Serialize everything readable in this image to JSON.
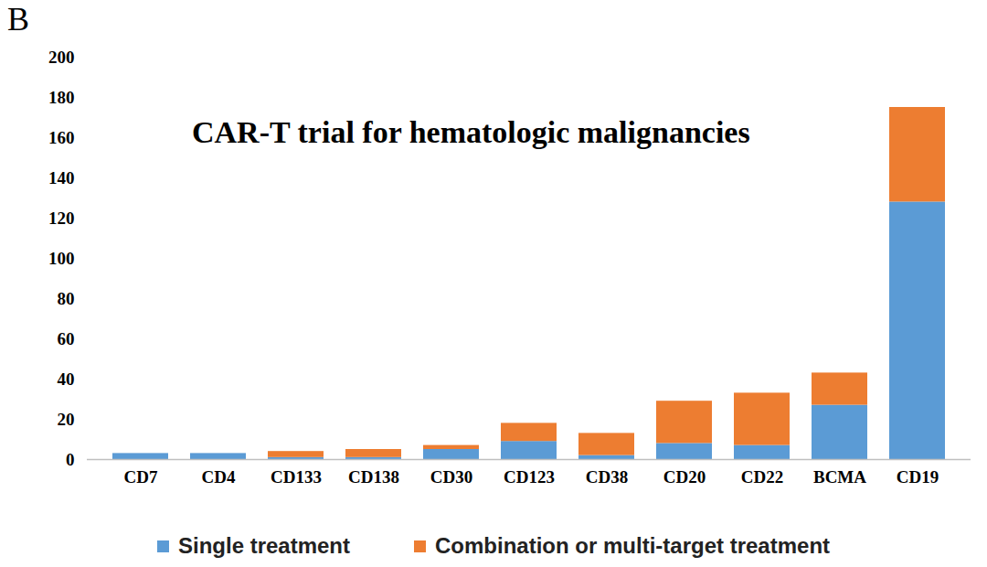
{
  "panel_label": "B",
  "chart_data": {
    "type": "bar",
    "stacked": true,
    "title": "CAR-T trial for hematologic malignancies",
    "categories": [
      "CD7",
      "CD4",
      "CD133",
      "CD138",
      "CD30",
      "CD123",
      "CD38",
      "CD20",
      "CD22",
      "BCMA",
      "CD19"
    ],
    "series": [
      {
        "name": "Single treatment",
        "color": "#5b9bd5",
        "values": [
          3,
          3,
          1,
          1,
          5,
          9,
          2,
          8,
          7,
          27,
          128
        ]
      },
      {
        "name": "Combination or multi-target treatment",
        "color": "#ed7d31",
        "values": [
          0,
          0,
          3,
          4,
          2,
          9,
          11,
          21,
          26,
          16,
          47
        ]
      }
    ],
    "ylim": [
      0,
      200
    ],
    "yticks": [
      0,
      20,
      40,
      60,
      80,
      100,
      120,
      140,
      160,
      180,
      200
    ],
    "grid": false,
    "legend": "bottom"
  }
}
